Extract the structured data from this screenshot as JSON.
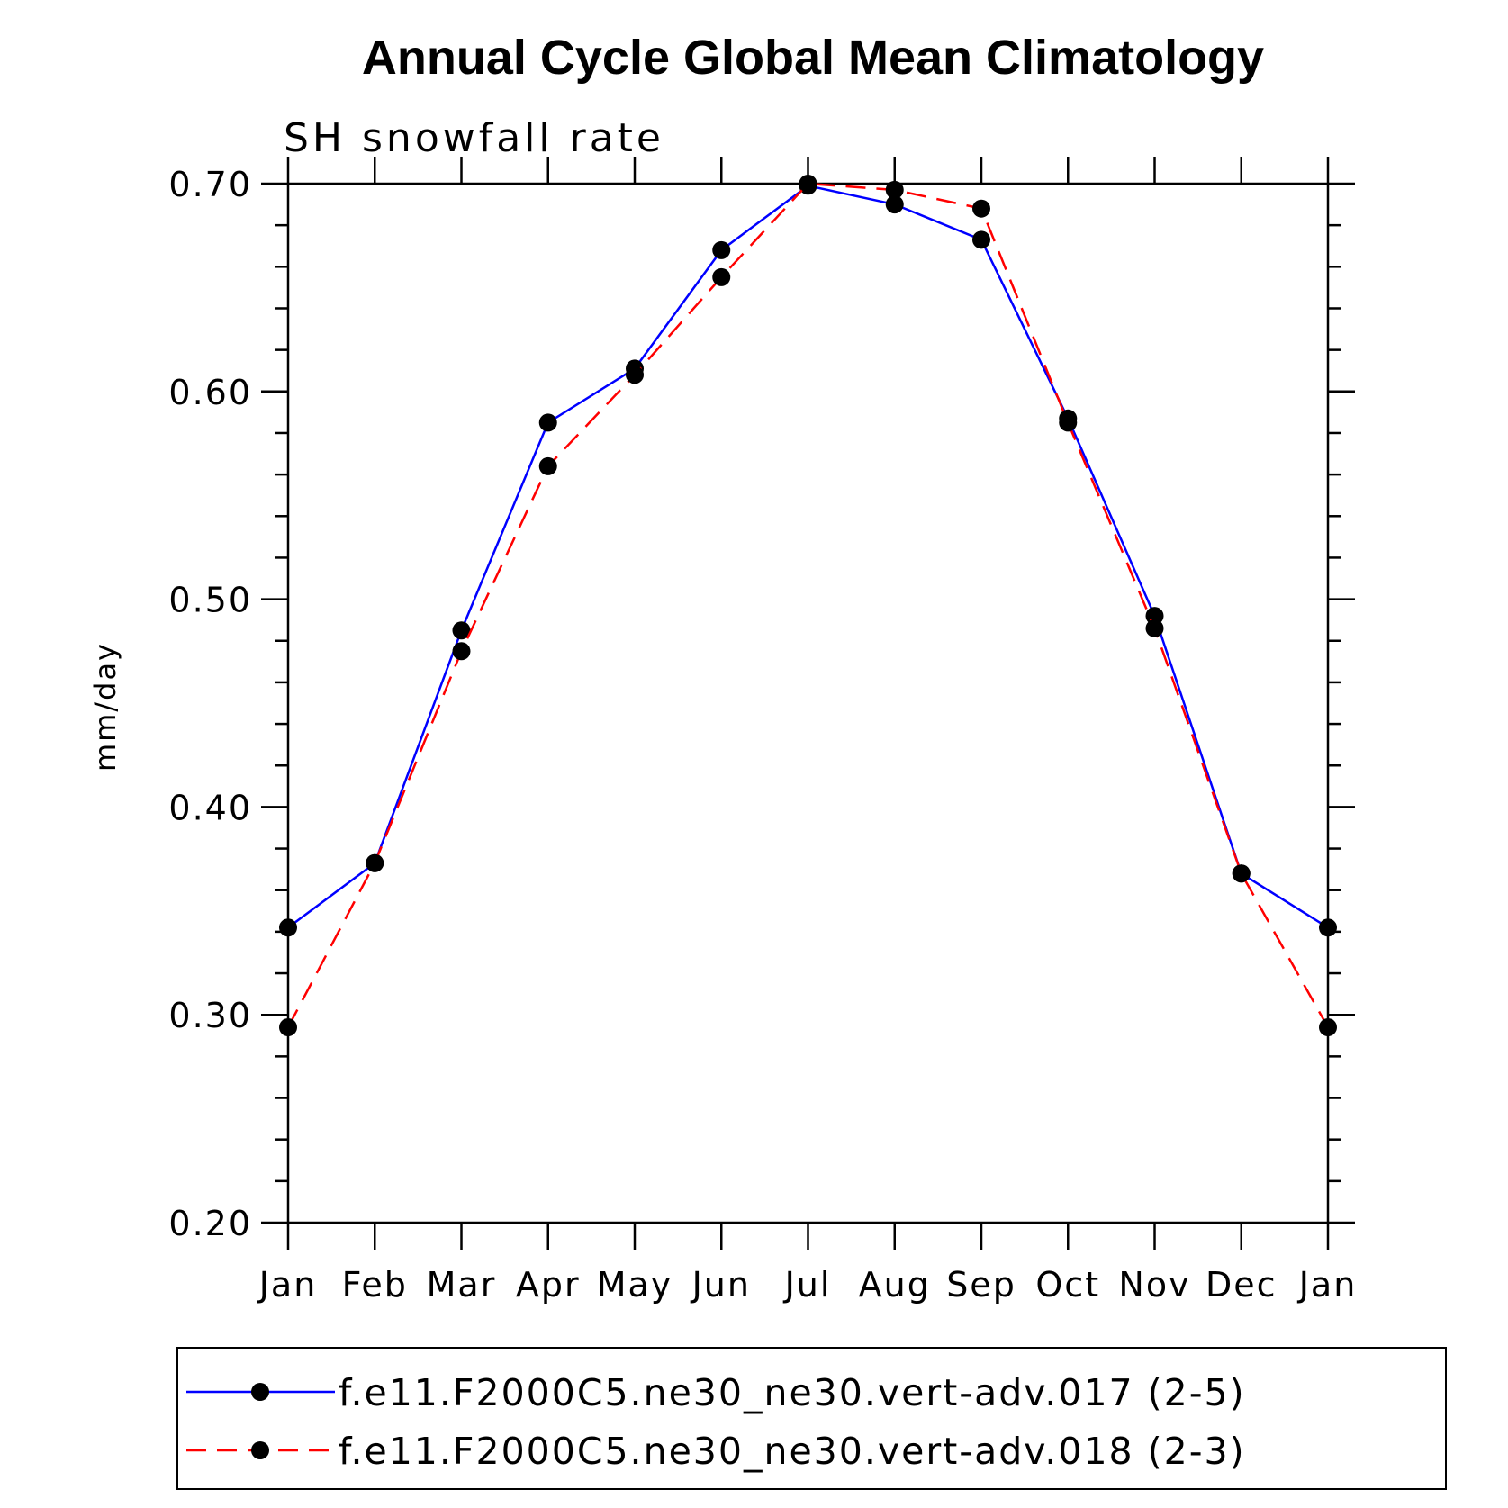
{
  "chart_data": {
    "type": "line",
    "title": "Annual Cycle Global Mean Climatology",
    "subtitle": "SH snowfall rate",
    "xlabel": "",
    "ylabel": "mm/day",
    "ylim": [
      0.2,
      0.7
    ],
    "y_ticks": [
      "0.20",
      "0.30",
      "0.40",
      "0.50",
      "0.60",
      "0.70"
    ],
    "y_minor_step": 0.02,
    "categories": [
      "Jan",
      "Feb",
      "Mar",
      "Apr",
      "May",
      "Jun",
      "Jul",
      "Aug",
      "Sep",
      "Oct",
      "Nov",
      "Dec",
      "Jan"
    ],
    "grid": false,
    "legend_position": "bottom",
    "series": [
      {
        "name": "f.e11.F2000C5.ne30_ne30.vert-adv.017 (2-5)",
        "color": "#0000ff",
        "line_style": "solid",
        "marker": "filled-circle",
        "values": [
          0.342,
          0.373,
          0.485,
          0.585,
          0.611,
          0.668,
          0.699,
          0.69,
          0.673,
          0.587,
          0.492,
          0.368,
          0.342
        ]
      },
      {
        "name": "f.e11.F2000C5.ne30_ne30.vert-adv.018 (2-3)",
        "color": "#ff0000",
        "line_style": "dashed",
        "marker": "filled-circle",
        "values": [
          0.294,
          0.373,
          0.475,
          0.564,
          0.608,
          0.655,
          0.7,
          0.697,
          0.688,
          0.585,
          0.486,
          0.368,
          0.294
        ]
      }
    ]
  }
}
